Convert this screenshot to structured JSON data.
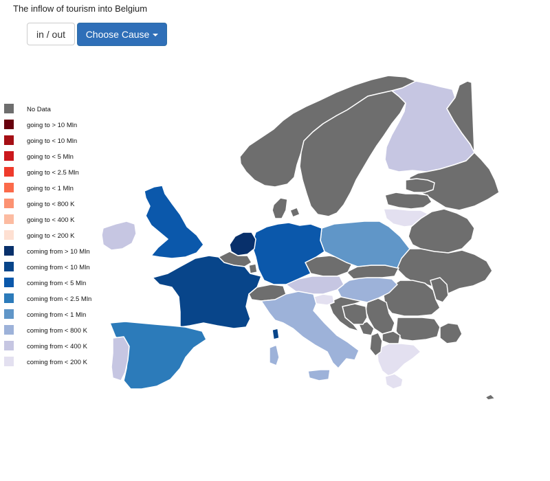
{
  "title": "The inflow of tourism into Belgium",
  "controls": {
    "inout_label": "in / out",
    "cause_label": "Choose Cause"
  },
  "legend": [
    {
      "label": "No Data",
      "color": "#6e6e6e"
    },
    {
      "label": "going to > 10 Mln",
      "color": "#67000d"
    },
    {
      "label": "going to < 10 Mln",
      "color": "#a50f15"
    },
    {
      "label": "going to < 5 Mln",
      "color": "#cb181d"
    },
    {
      "label": "going to < 2.5 Mln",
      "color": "#ef3b2c"
    },
    {
      "label": "going to < 1 Mln",
      "color": "#fb6a4a"
    },
    {
      "label": "going to < 800 K",
      "color": "#fc9272"
    },
    {
      "label": "going to < 400 K",
      "color": "#fcbba1"
    },
    {
      "label": "going to < 200 K",
      "color": "#fee0d2"
    },
    {
      "label": "coming from > 10 Mln",
      "color": "#08306b"
    },
    {
      "label": "coming from < 10 Mln",
      "color": "#08458a"
    },
    {
      "label": "coming from < 5 Mln",
      "color": "#0b58ab"
    },
    {
      "label": "coming from < 2.5 Mln",
      "color": "#2c7bba"
    },
    {
      "label": "coming from < 1 Mln",
      "color": "#6096c8"
    },
    {
      "label": "coming from < 800 K",
      "color": "#9db2d9"
    },
    {
      "label": "coming from < 400 K",
      "color": "#c6c6e2"
    },
    {
      "label": "coming from < 200 K",
      "color": "#e3e0f0"
    }
  ],
  "countries": [
    {
      "name": "Norway",
      "category": "No Data",
      "color": "#6e6e6e"
    },
    {
      "name": "Sweden",
      "category": "No Data",
      "color": "#6e6e6e"
    },
    {
      "name": "Finland",
      "category": "coming from < 400 K",
      "color": "#c6c6e2"
    },
    {
      "name": "Russia",
      "category": "No Data",
      "color": "#6e6e6e"
    },
    {
      "name": "Estonia",
      "category": "No Data",
      "color": "#6e6e6e"
    },
    {
      "name": "Latvia",
      "category": "No Data",
      "color": "#6e6e6e"
    },
    {
      "name": "Lithuania",
      "category": "coming from < 200 K",
      "color": "#e3e0f0"
    },
    {
      "name": "Belarus",
      "category": "No Data",
      "color": "#6e6e6e"
    },
    {
      "name": "Ukraine",
      "category": "No Data",
      "color": "#6e6e6e"
    },
    {
      "name": "Moldova",
      "category": "No Data",
      "color": "#6e6e6e"
    },
    {
      "name": "Romania",
      "category": "No Data",
      "color": "#6e6e6e"
    },
    {
      "name": "Bulgaria",
      "category": "No Data",
      "color": "#6e6e6e"
    },
    {
      "name": "Turkey",
      "category": "No Data",
      "color": "#6e6e6e"
    },
    {
      "name": "Greece",
      "category": "coming from < 200 K",
      "color": "#e3e0f0"
    },
    {
      "name": "Albania",
      "category": "No Data",
      "color": "#6e6e6e"
    },
    {
      "name": "Macedonia",
      "category": "No Data",
      "color": "#6e6e6e"
    },
    {
      "name": "Serbia",
      "category": "No Data",
      "color": "#6e6e6e"
    },
    {
      "name": "Montenegro",
      "category": "No Data",
      "color": "#6e6e6e"
    },
    {
      "name": "Bosnia",
      "category": "No Data",
      "color": "#6e6e6e"
    },
    {
      "name": "Croatia",
      "category": "No Data",
      "color": "#6e6e6e"
    },
    {
      "name": "Slovenia",
      "category": "coming from < 200 K",
      "color": "#e3e0f0"
    },
    {
      "name": "Hungary",
      "category": "coming from < 800 K",
      "color": "#9db2d9"
    },
    {
      "name": "Slovakia",
      "category": "No Data",
      "color": "#6e6e6e"
    },
    {
      "name": "Czech Republic",
      "category": "No Data",
      "color": "#6e6e6e"
    },
    {
      "name": "Austria",
      "category": "coming from < 400 K",
      "color": "#c6c6e2"
    },
    {
      "name": "Poland",
      "category": "coming from < 1 Mln",
      "color": "#6096c8"
    },
    {
      "name": "Germany",
      "category": "coming from < 5 Mln",
      "color": "#0b58ab"
    },
    {
      "name": "Denmark",
      "category": "No Data",
      "color": "#6e6e6e"
    },
    {
      "name": "Netherlands",
      "category": "coming from > 10 Mln",
      "color": "#08306b"
    },
    {
      "name": "Belgium",
      "category": "No Data",
      "color": "#6e6e6e"
    },
    {
      "name": "Luxembourg",
      "category": "No Data",
      "color": "#6e6e6e"
    },
    {
      "name": "France",
      "category": "coming from < 10 Mln",
      "color": "#08458a"
    },
    {
      "name": "Switzerland",
      "category": "No Data",
      "color": "#6e6e6e"
    },
    {
      "name": "Italy",
      "category": "coming from < 800 K",
      "color": "#9db2d9"
    },
    {
      "name": "Sardinia",
      "category": "coming from < 800 K",
      "color": "#9db2d9"
    },
    {
      "name": "Sicily",
      "category": "coming from < 800 K",
      "color": "#9db2d9"
    },
    {
      "name": "Corsica",
      "category": "coming from < 10 Mln",
      "color": "#08458a"
    },
    {
      "name": "Spain",
      "category": "coming from < 2.5 Mln",
      "color": "#2c7bba"
    },
    {
      "name": "Portugal",
      "category": "coming from < 400 K",
      "color": "#c6c6e2"
    },
    {
      "name": "United Kingdom",
      "category": "coming from < 5 Mln",
      "color": "#0b58ab"
    },
    {
      "name": "Ireland",
      "category": "coming from < 400 K",
      "color": "#c6c6e2"
    },
    {
      "name": "Cyprus",
      "category": "No Data",
      "color": "#6e6e6e"
    }
  ]
}
